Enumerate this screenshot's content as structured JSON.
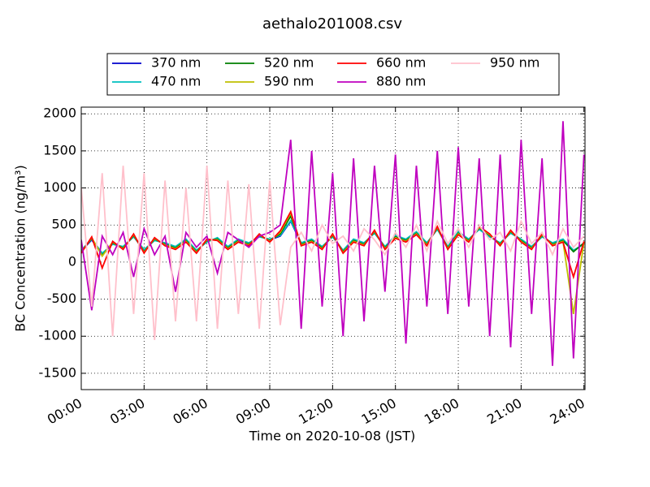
{
  "chart_data": {
    "type": "line",
    "title": "aethalo201008.csv",
    "x_label": "Time on 2020-10-08 (JST)",
    "y_label": "BC Concentration (ng/m³)",
    "x": [
      0,
      0.5,
      1,
      1.5,
      2,
      2.5,
      3,
      3.5,
      4,
      4.5,
      5,
      5.5,
      6,
      6.5,
      7,
      7.5,
      8,
      8.5,
      9,
      9.5,
      10,
      10.5,
      11,
      11.5,
      12,
      12.5,
      13,
      13.5,
      14,
      14.5,
      15,
      15.5,
      16,
      16.5,
      17,
      17.5,
      18,
      18.5,
      19,
      19.5,
      20,
      20.5,
      21,
      21.5,
      22,
      22.5,
      23,
      23.5,
      24
    ],
    "series": [
      {
        "name": "370 nm",
        "color": "#0000cc",
        "values": [
          150,
          300,
          100,
          250,
          200,
          350,
          150,
          300,
          250,
          200,
          300,
          150,
          280,
          320,
          200,
          300,
          250,
          350,
          300,
          350,
          550,
          250,
          300,
          200,
          350,
          150,
          300,
          250,
          400,
          200,
          350,
          300,
          400,
          250,
          450,
          200,
          400,
          300,
          450,
          350,
          250,
          400,
          300,
          200,
          350,
          250,
          300,
          150,
          250
        ]
      },
      {
        "name": "470 nm",
        "color": "#00bfbf",
        "values": [
          160,
          310,
          120,
          240,
          210,
          340,
          170,
          290,
          260,
          210,
          310,
          160,
          270,
          330,
          210,
          310,
          260,
          340,
          310,
          360,
          560,
          260,
          310,
          210,
          340,
          160,
          310,
          260,
          390,
          210,
          360,
          310,
          410,
          260,
          440,
          210,
          410,
          310,
          440,
          340,
          260,
          390,
          310,
          210,
          340,
          260,
          310,
          160,
          240
        ]
      },
      {
        "name": "520 nm",
        "color": "#007f00",
        "values": [
          140,
          320,
          90,
          260,
          190,
          360,
          140,
          310,
          240,
          190,
          290,
          140,
          290,
          310,
          190,
          290,
          240,
          360,
          290,
          380,
          620,
          240,
          290,
          190,
          360,
          140,
          290,
          240,
          410,
          190,
          340,
          290,
          390,
          240,
          460,
          190,
          390,
          290,
          460,
          360,
          240,
          410,
          290,
          190,
          360,
          240,
          290,
          140,
          260
        ]
      },
      {
        "name": "590 nm",
        "color": "#bfbf00",
        "values": [
          130,
          330,
          80,
          270,
          180,
          370,
          130,
          320,
          230,
          180,
          280,
          130,
          300,
          300,
          180,
          280,
          230,
          370,
          280,
          400,
          660,
          230,
          280,
          180,
          370,
          130,
          280,
          230,
          420,
          180,
          330,
          280,
          380,
          230,
          470,
          180,
          380,
          280,
          470,
          370,
          230,
          420,
          280,
          180,
          370,
          230,
          280,
          -700,
          270
        ]
      },
      {
        "name": "660 nm",
        "color": "#ff0000",
        "values": [
          120,
          340,
          -80,
          280,
          170,
          380,
          120,
          330,
          220,
          170,
          270,
          120,
          310,
          290,
          170,
          270,
          220,
          380,
          270,
          420,
          680,
          220,
          270,
          170,
          380,
          120,
          270,
          220,
          430,
          170,
          320,
          270,
          370,
          220,
          480,
          170,
          370,
          270,
          480,
          380,
          220,
          430,
          270,
          170,
          380,
          220,
          270,
          -200,
          280
        ]
      },
      {
        "name": "880 nm",
        "color": "#bf00bf",
        "values": [
          300,
          -650,
          350,
          100,
          400,
          -200,
          450,
          100,
          350,
          -400,
          400,
          200,
          350,
          -150,
          400,
          300,
          200,
          350,
          400,
          500,
          1650,
          -900,
          1500,
          -600,
          1200,
          -1000,
          1400,
          -800,
          1300,
          -400,
          1450,
          -1100,
          1300,
          -600,
          1500,
          -700,
          1550,
          -600,
          1400,
          -1000,
          1450,
          -1150,
          1650,
          -700,
          1400,
          -1400,
          1900,
          -1300,
          1450
        ]
      },
      {
        "name": "950 nm",
        "color": "#ffc0cb",
        "values": [
          1000,
          -600,
          1200,
          -1000,
          1300,
          -700,
          1200,
          -1050,
          1100,
          -800,
          1000,
          -800,
          1300,
          -900,
          1100,
          -700,
          1050,
          -900,
          1100,
          -850,
          200,
          400,
          150,
          500,
          250,
          350,
          150,
          450,
          300,
          100,
          400,
          200,
          500,
          150,
          550,
          250,
          450,
          200,
          500,
          300,
          400,
          150,
          550,
          250,
          400,
          100,
          450,
          200,
          350
        ]
      }
    ],
    "xlim": [
      0,
      24.05
    ],
    "xticks": [
      {
        "value": 0,
        "label": "00:00"
      },
      {
        "value": 3,
        "label": "03:00"
      },
      {
        "value": 6,
        "label": "06:00"
      },
      {
        "value": 9,
        "label": "09:00"
      },
      {
        "value": 12,
        "label": "12:00"
      },
      {
        "value": 15,
        "label": "15:00"
      },
      {
        "value": 18,
        "label": "18:00"
      },
      {
        "value": 21,
        "label": "21:00"
      },
      {
        "value": 24,
        "label": "24:00"
      }
    ],
    "ylim": [
      -1720,
      2090
    ],
    "yticks": [
      -1500,
      -1000,
      -500,
      0,
      500,
      1000,
      1500,
      2000
    ],
    "grid": true
  }
}
